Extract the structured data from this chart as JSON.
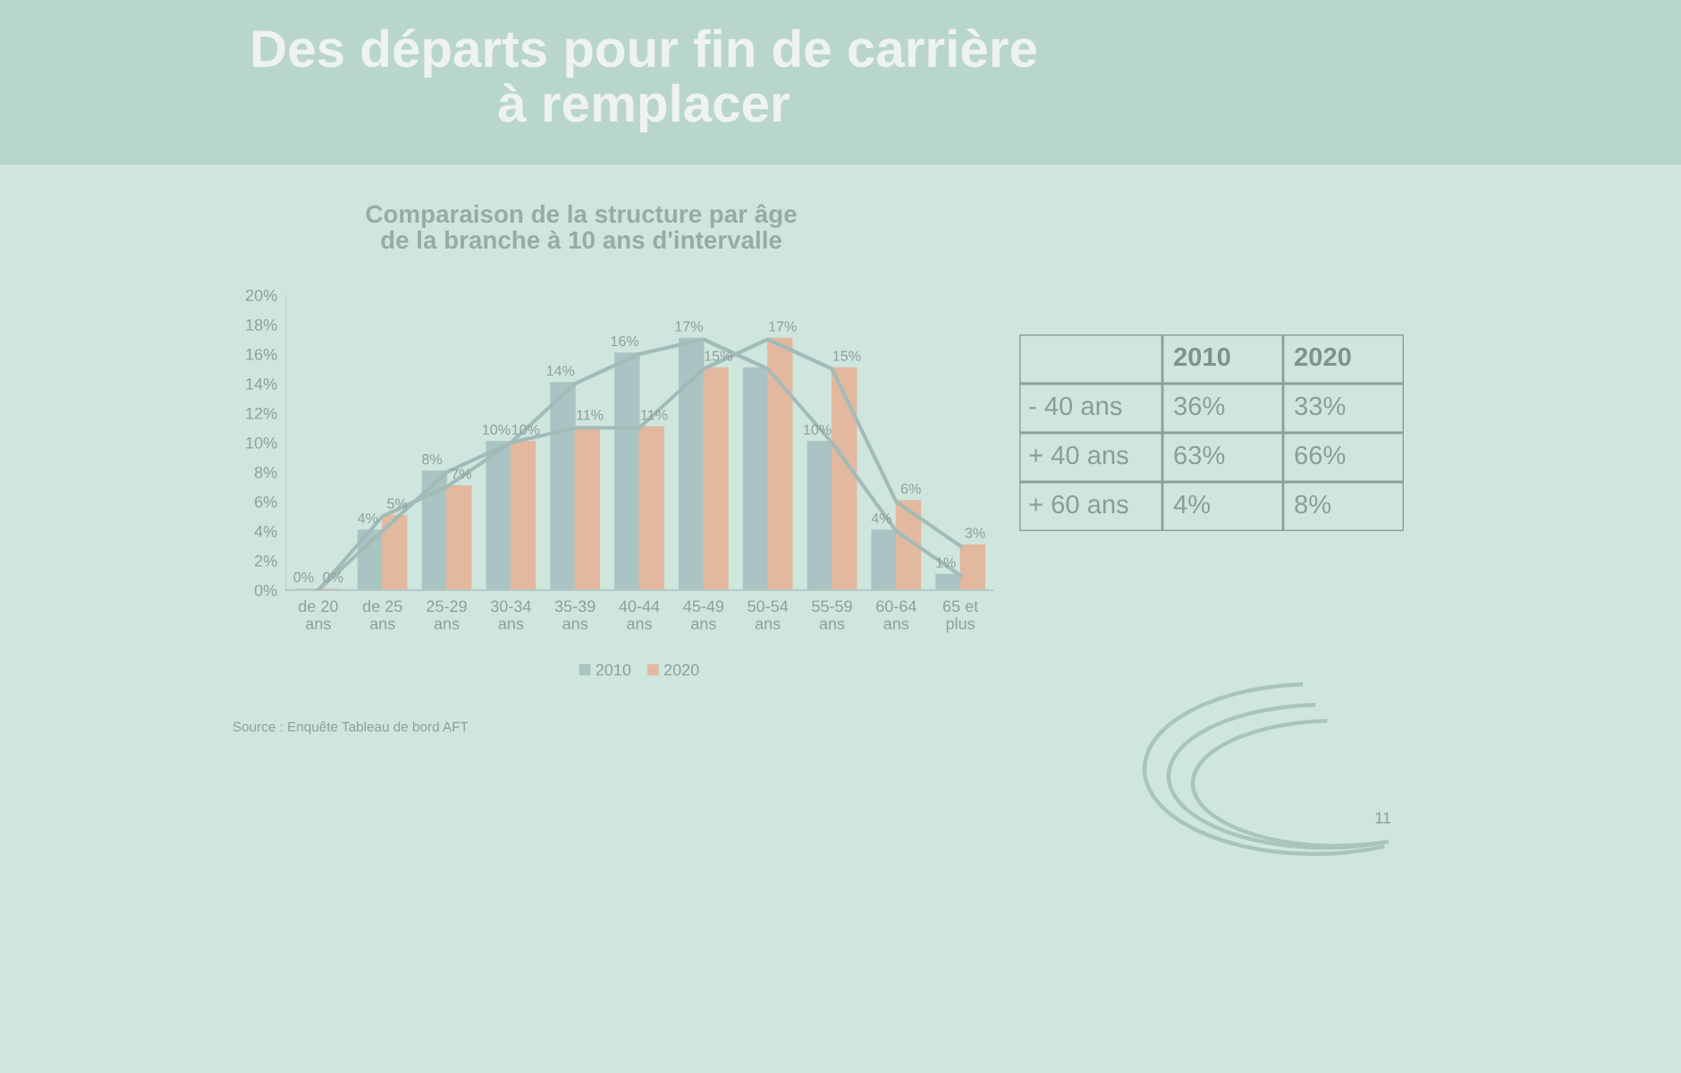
{
  "chart_data": [
    {
      "type": "bar",
      "title": "Des départs pour fin de carrière à remplacer",
      "subtitle": "Comparaison de la structure par âge de la branche à 10 ans d'intervalle",
      "categories": [
        "de 20 ans",
        "de 25 ans",
        "25-29 ans",
        "30-34 ans",
        "35-39 ans",
        "40-44 ans",
        "45-49 ans",
        "50-54 ans",
        "55-59 ans",
        "60-64 ans",
        "65 et plus"
      ],
      "series": [
        {
          "name": "2010",
          "type": "bar",
          "color": "#a9c4c2",
          "values": [
            0,
            4,
            8,
            10,
            14,
            16,
            17,
            15,
            10,
            4,
            1
          ],
          "value_labels": [
            "0%",
            "4%",
            "8%",
            "10%",
            "14%",
            "16%",
            "17%",
            null,
            "10%",
            "4%",
            "1%"
          ]
        },
        {
          "name": "2020",
          "type": "bar",
          "color": "#e2b89e",
          "values": [
            0,
            5,
            7,
            10,
            11,
            11,
            15,
            17,
            15,
            6,
            3
          ],
          "value_labels": [
            "0%",
            "5%",
            "7%",
            "10%",
            "11%",
            "11%",
            "15%",
            "17%",
            "15%",
            "6%",
            "3%"
          ]
        },
        {
          "type": "line",
          "color": "#a3bbb8",
          "values": [
            0,
            4,
            8,
            10,
            14,
            16,
            17,
            15,
            10,
            4,
            1
          ]
        },
        {
          "type": "line",
          "color": "#a3bbb8",
          "values": [
            0,
            5,
            7,
            10,
            11,
            11,
            15,
            17,
            15,
            6,
            3
          ]
        }
      ],
      "ylim": [
        0,
        20
      ],
      "yticks": [
        {
          "value": 0,
          "label": "0%"
        },
        {
          "value": 2,
          "label": "2%"
        },
        {
          "value": 4,
          "label": "4%"
        },
        {
          "value": 6,
          "label": "6%"
        },
        {
          "value": 8,
          "label": "8%"
        },
        {
          "value": 10,
          "label": "10%"
        },
        {
          "value": 12,
          "label": "12%"
        },
        {
          "value": 14,
          "label": "14%"
        },
        {
          "value": 16,
          "label": "16%"
        },
        {
          "value": 18,
          "label": "18%"
        },
        {
          "value": 20,
          "label": "20%"
        }
      ],
      "grid": false,
      "legend": "bottom",
      "annotations": [
        "Source : Enquête Tableau de bord AFT",
        "11"
      ]
    },
    {
      "type": "other",
      "categories": [
        "2010",
        "2020"
      ],
      "y_categories": [
        "- 40 ans",
        "+ 40 ans",
        "+ 60 ans"
      ],
      "cell_labels": [
        [
          "36%",
          "33%"
        ],
        [
          "63%",
          "66%"
        ],
        [
          "4%",
          "8%"
        ]
      ]
    }
  ]
}
